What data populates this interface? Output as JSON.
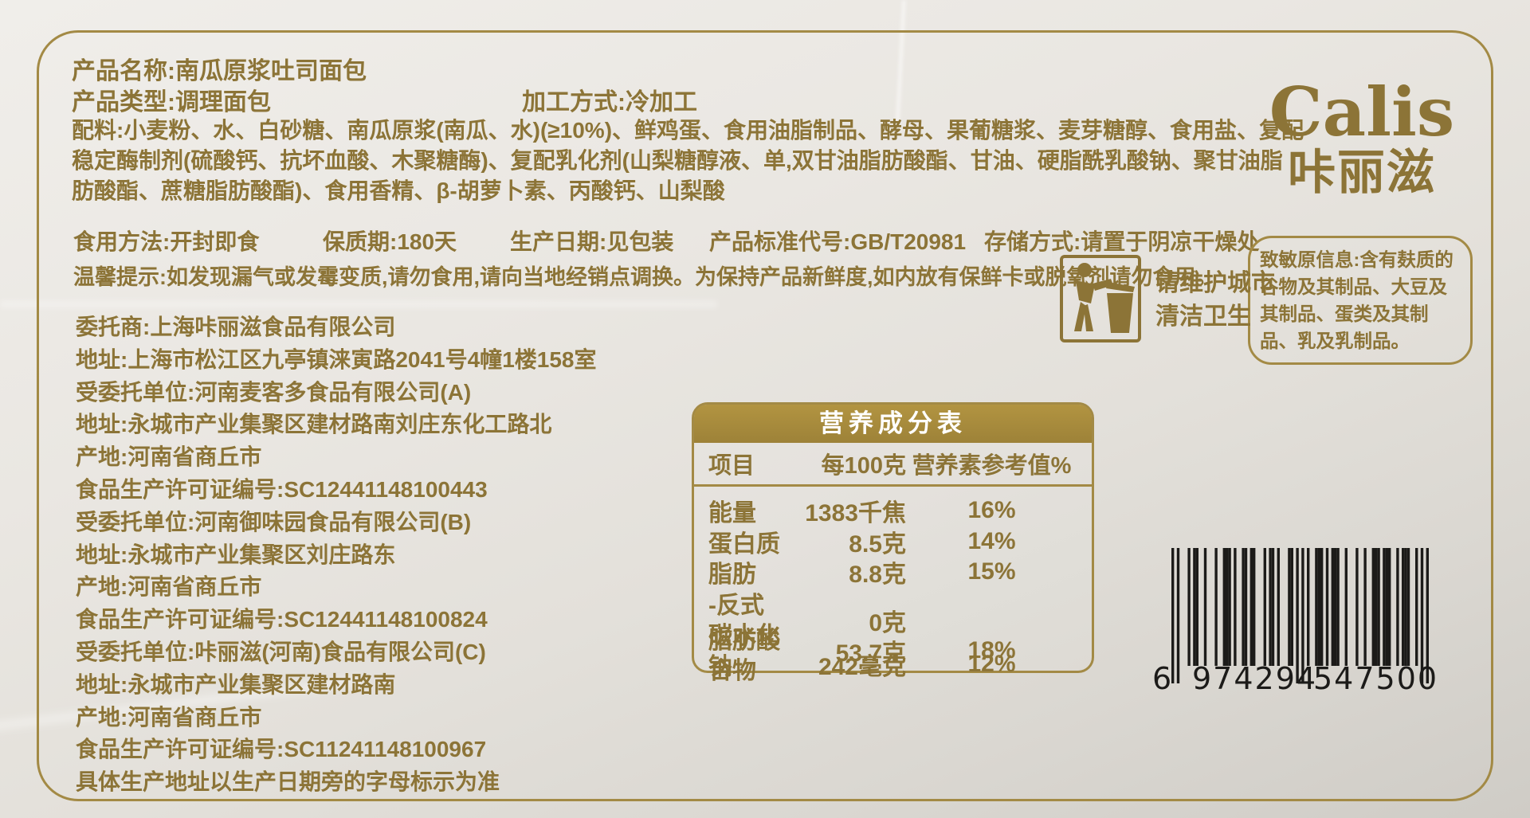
{
  "colors": {
    "gold_text": "#8c7437",
    "gold_border": "#a38a45",
    "table_header_bg": "#a88d42",
    "table_header_text": "#ffffff",
    "barcode": "#1c1b19",
    "paper": "#e7e4df"
  },
  "brand": {
    "logo": "Calis",
    "logo_cn": "咔丽滋"
  },
  "top": {
    "product_name": "产品名称:南瓜原浆吐司面包",
    "product_type": "产品类型:调理面包",
    "processing": "加工方式:冷加工",
    "ingredients_1": "配料:小麦粉、水、白砂糖、南瓜原浆(南瓜、水)(≥10%)、鲜鸡蛋、食用油脂制品、酵母、果葡糖浆、麦芽糖醇、食用盐、复配",
    "ingredients_2": "稳定酶制剂(硫酸钙、抗坏血酸、木聚糖酶)、复配乳化剂(山梨糖醇液、单,双甘油脂肪酸酯、甘油、硬脂酰乳酸钠、聚甘油脂",
    "ingredients_3": "肪酸酯、蔗糖脂肪酸酯)、食用香精、β-胡萝卜素、丙酸钙、山梨酸",
    "usage": "食用方法:开封即食",
    "shelf_life": "保质期:180天",
    "prod_date": "生产日期:见包装",
    "standard": "产品标准代号:GB/T20981",
    "storage": "存储方式:请置于阴凉干燥处",
    "tip": "温馨提示:如发现漏气或发霉变质,请勿食用,请向当地经销点调换。为保持产品新鲜度,如内放有保鲜卡或脱氧剂请勿食用。"
  },
  "civic": {
    "line1": "请维护城市",
    "line2": "清洁卫生"
  },
  "allergen": {
    "text": "致敏原信息:含有麸质的谷物及其制品、大豆及其制品、蛋类及其制品、乳及乳制品。"
  },
  "manufacturer": {
    "lines": [
      "委托商:上海咔丽滋食品有限公司",
      "地址:上海市松江区九亭镇涞寅路2041号4幢1楼158室",
      "受委托单位:河南麦客多食品有限公司(A)",
      "地址:永城市产业集聚区建材路南刘庄东化工路北",
      "产地:河南省商丘市",
      "食品生产许可证编号:SC12441148100443",
      "受委托单位:河南御味园食品有限公司(B)",
      "地址:永城市产业集聚区刘庄路东",
      "产地:河南省商丘市",
      "食品生产许可证编号:SC12441148100824",
      "受委托单位:咔丽滋(河南)食品有限公司(C)",
      "地址:永城市产业集聚区建材路南",
      "产地:河南省商丘市",
      "食品生产许可证编号:SC11241148100967",
      "具体生产地址以生产日期旁的字母标示为准"
    ]
  },
  "nutrition": {
    "title": "营养成分表",
    "columns": [
      "项目",
      "每100克",
      "营养素参考值%"
    ],
    "rows": [
      {
        "name": "能量",
        "per100": "1383千焦",
        "nrv": "16%"
      },
      {
        "name": "蛋白质",
        "per100": "8.5克",
        "nrv": "14%"
      },
      {
        "name": "脂肪",
        "per100": "8.8克",
        "nrv": "15%"
      },
      {
        "name": "-反式脂肪酸",
        "per100": "0克",
        "nrv": ""
      },
      {
        "name": "碳水化合物",
        "per100": "53.7克",
        "nrv": "18%"
      },
      {
        "name": "钠",
        "per100": "242毫克",
        "nrv": "12%"
      }
    ]
  },
  "barcode": {
    "lead": "6",
    "group1": "974294",
    "group2": "547500",
    "full": "6974294547500"
  }
}
